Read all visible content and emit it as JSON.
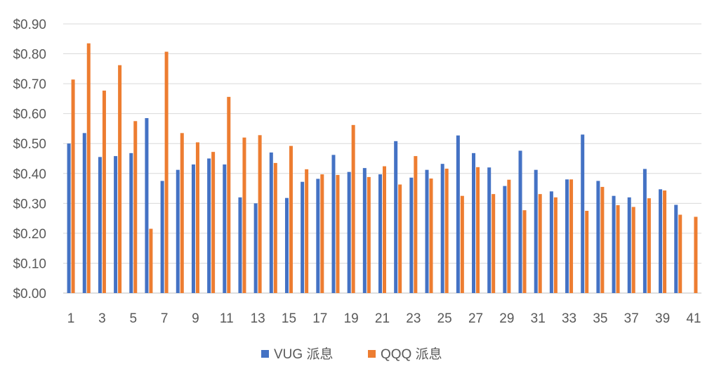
{
  "chart_data": {
    "type": "bar",
    "title": "",
    "xlabel": "",
    "ylabel": "",
    "ylim": [
      0,
      0.9
    ],
    "y_ticks": [
      "$0.00",
      "$0.10",
      "$0.20",
      "$0.30",
      "$0.40",
      "$0.50",
      "$0.60",
      "$0.70",
      "$0.80",
      "$0.90"
    ],
    "y_tick_values": [
      0,
      0.1,
      0.2,
      0.3,
      0.4,
      0.5,
      0.6,
      0.7,
      0.8,
      0.9
    ],
    "x_tick_labels": [
      "1",
      "3",
      "5",
      "7",
      "9",
      "11",
      "13",
      "15",
      "17",
      "19",
      "21",
      "23",
      "25",
      "27",
      "29",
      "31",
      "33",
      "35",
      "37",
      "39",
      "41"
    ],
    "categories": [
      1,
      2,
      3,
      4,
      5,
      6,
      7,
      8,
      9,
      10,
      11,
      12,
      13,
      14,
      15,
      16,
      17,
      18,
      19,
      20,
      21,
      22,
      23,
      24,
      25,
      26,
      27,
      28,
      29,
      30,
      31,
      32,
      33,
      34,
      35,
      36,
      37,
      38,
      39,
      40,
      41
    ],
    "grid": true,
    "legend_position": "bottom",
    "series": [
      {
        "name": "VUG 派息",
        "color": "#4472C4",
        "values": [
          0.5,
          0.535,
          0.455,
          0.458,
          0.468,
          0.585,
          0.375,
          0.412,
          0.43,
          0.45,
          0.43,
          0.32,
          0.3,
          0.47,
          0.318,
          0.372,
          0.382,
          0.462,
          0.405,
          0.418,
          0.397,
          0.508,
          0.386,
          0.412,
          0.432,
          0.527,
          0.468,
          0.42,
          0.358,
          0.476,
          0.412,
          0.34,
          0.38,
          0.53,
          0.375,
          0.325,
          0.32,
          0.415,
          0.347,
          0.295,
          null
        ]
      },
      {
        "name": "QQQ 派息",
        "color": "#ED7D31",
        "values": [
          0.714,
          0.835,
          0.677,
          0.762,
          0.575,
          0.215,
          0.807,
          0.535,
          0.504,
          0.472,
          0.656,
          0.52,
          0.528,
          0.435,
          0.492,
          0.414,
          0.397,
          0.395,
          0.562,
          0.388,
          0.424,
          0.363,
          0.458,
          0.383,
          0.416,
          0.325,
          0.421,
          0.331,
          0.379,
          0.277,
          0.331,
          0.32,
          0.38,
          0.275,
          0.355,
          0.294,
          0.288,
          0.317,
          0.343,
          0.262,
          0.255
        ]
      }
    ]
  }
}
